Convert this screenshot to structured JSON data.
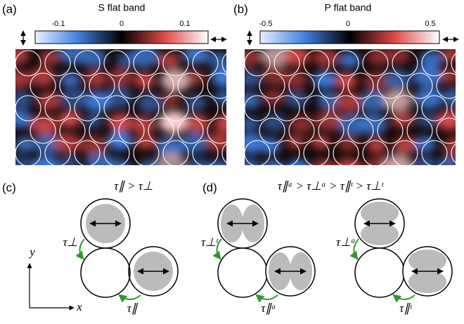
{
  "panel_a": {
    "label": "(a)",
    "title": "S flat band",
    "colorbar_ticks": [
      "-0.1",
      "0",
      "0.1"
    ]
  },
  "panel_b": {
    "label": "(b)",
    "title": "P flat band",
    "colorbar_ticks": [
      "-0.5",
      "0",
      "0.5"
    ]
  },
  "panel_c": {
    "label": "(c)",
    "relation": "τ∥ > τ⊥",
    "hop_perp": "τ⊥",
    "hop_par": "τ∥",
    "axis_x": "x",
    "axis_y": "y"
  },
  "panel_d": {
    "label": "(d)",
    "relation": "τ∥ᵃ > τ⊥ᵃ > τ∥ᵗ > τ⊥ᵗ",
    "left": {
      "hop_perp": "τ⊥ᵗ",
      "hop_par": "τ∥ᵃ"
    },
    "right": {
      "hop_perp": "τ⊥ᵃ",
      "hop_par": "τ∥ᵗ"
    }
  }
}
